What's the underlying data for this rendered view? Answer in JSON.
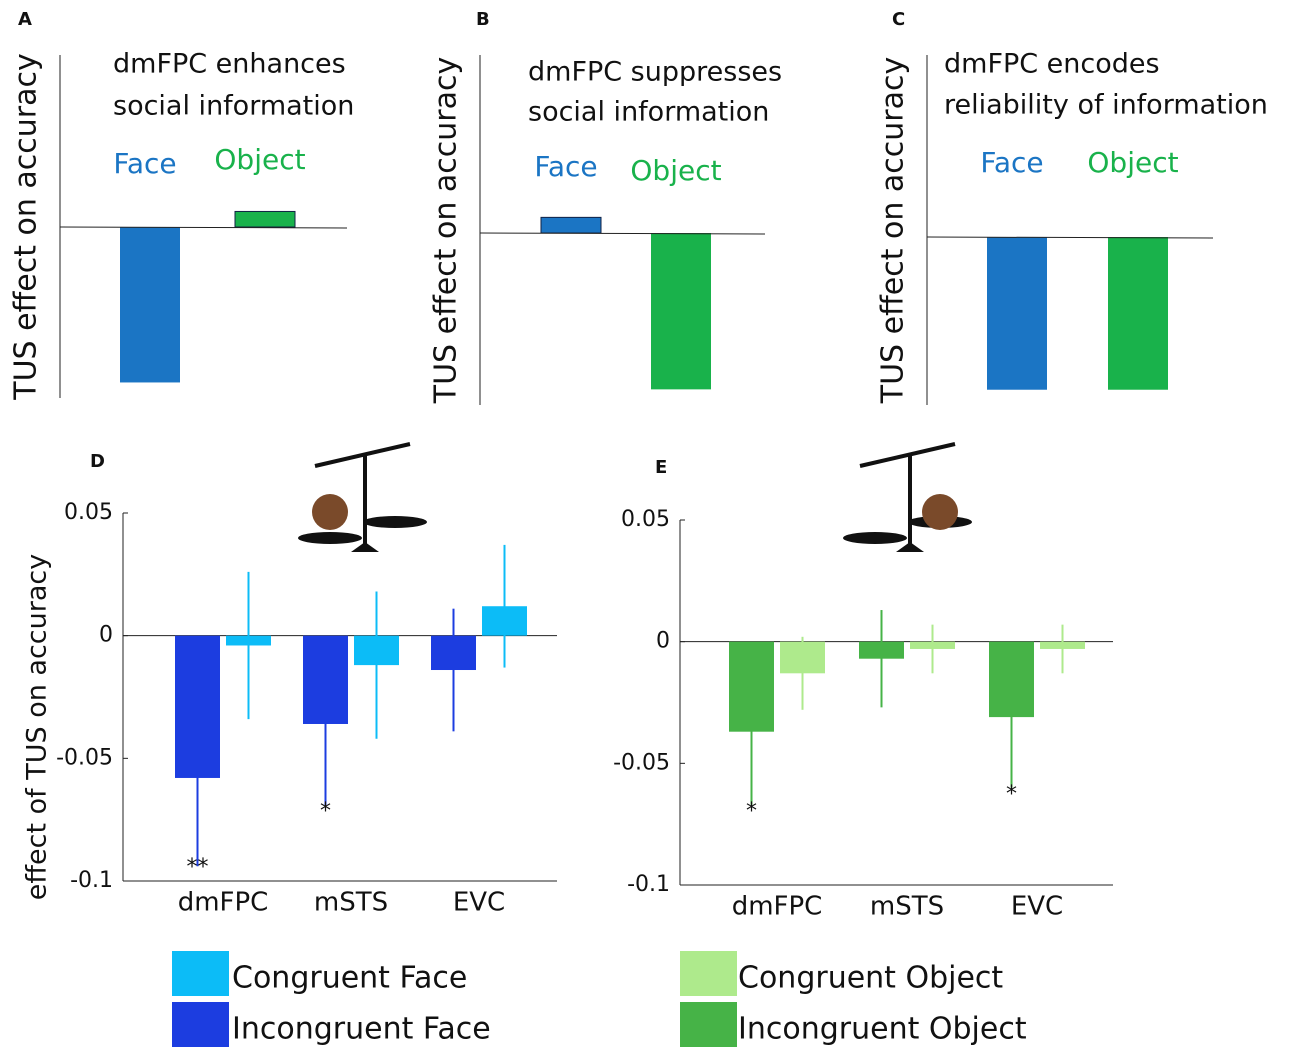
{
  "chart_data": [
    {
      "type": "concept-bar",
      "panel": "A",
      "title": [
        "dmFPC enhances",
        "social information"
      ],
      "ylabel": "TUS effect on accuracy",
      "categories": [
        "Face",
        "Object"
      ],
      "values": [
        -1,
        0.1
      ],
      "colors": [
        "#1b75c4",
        "#19b24b"
      ],
      "ylim": [
        -1.1,
        1.1
      ]
    },
    {
      "type": "concept-bar",
      "panel": "B",
      "title": [
        "dmFPC suppresses",
        "social information"
      ],
      "ylabel": "TUS effect on accuracy",
      "categories": [
        "Face",
        "Object"
      ],
      "values": [
        0.1,
        -1
      ],
      "colors": [
        "#1b75c4",
        "#19b24b"
      ],
      "ylim": [
        -1.1,
        1.1
      ]
    },
    {
      "type": "concept-bar",
      "panel": "C",
      "title": [
        "dmFPC encodes",
        "reliability of information"
      ],
      "ylabel": "TUS effect on accuracy",
      "categories": [
        "Face",
        "Object"
      ],
      "values": [
        -1,
        -1
      ],
      "colors": [
        "#1b75c4",
        "#19b24b"
      ],
      "ylim": [
        -1.1,
        1.1
      ]
    },
    {
      "type": "grouped-bar",
      "panel": "D",
      "ylabel": "effect of TUS on accuracy",
      "categories": [
        "dmFPC",
        "mSTS",
        "EVC"
      ],
      "series": [
        {
          "name": "Incongruent Face",
          "color": "#1c3de0",
          "values": [
            -0.058,
            -0.036,
            -0.014
          ],
          "errors": [
            0.036,
            0.033,
            0.025
          ]
        },
        {
          "name": "Congruent Face",
          "color": "#0cbcf7",
          "values": [
            -0.004,
            -0.012,
            0.012
          ],
          "errors": [
            0.03,
            0.03,
            0.025
          ]
        }
      ],
      "ylim": [
        -0.1,
        0.05
      ],
      "yticks": [
        -0.1,
        -0.05,
        0,
        0.05
      ],
      "annotations": [
        "**",
        "*"
      ]
    },
    {
      "type": "grouped-bar",
      "panel": "E",
      "categories": [
        "dmFPC",
        "mSTS",
        "EVC"
      ],
      "series": [
        {
          "name": "Incongruent Object",
          "color": "#46b347",
          "values": [
            -0.037,
            -0.007,
            -0.031
          ],
          "errors": [
            0.03,
            0.02,
            0.029
          ]
        },
        {
          "name": "Congruent Object",
          "color": "#aeea8c",
          "values": [
            -0.013,
            -0.003,
            -0.003
          ],
          "errors": [
            0.015,
            0.01,
            0.01
          ]
        }
      ],
      "ylim": [
        -0.1,
        0.05
      ],
      "yticks": [
        -0.1,
        -0.05,
        0,
        0.05
      ],
      "annotations": [
        "*",
        "*"
      ]
    }
  ]
}
